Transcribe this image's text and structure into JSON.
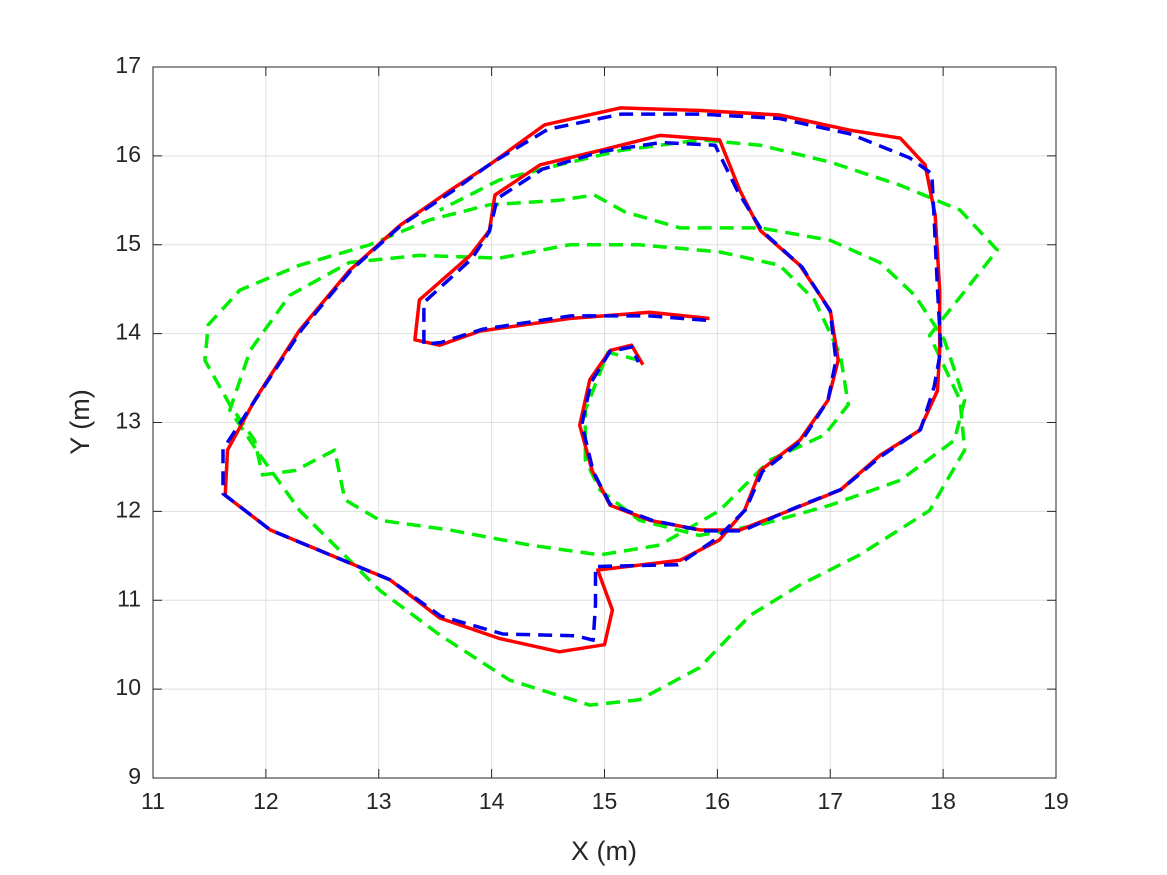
{
  "chart_data": {
    "type": "line",
    "xlabel": "X (m)",
    "ylabel": "Y (m)",
    "xlim": [
      11,
      19
    ],
    "ylim": [
      9,
      17
    ],
    "xticks": [
      11,
      12,
      13,
      14,
      15,
      16,
      17,
      18,
      19
    ],
    "yticks": [
      9,
      10,
      11,
      12,
      13,
      14,
      15,
      16,
      17
    ],
    "grid": true,
    "box": true,
    "series": [
      {
        "color": "#00ee00",
        "dash": "dashed",
        "x": [
          15.31,
          15.03,
          14.83,
          14.83,
          14.96,
          15.31,
          15.84,
          16.38,
          17.0,
          17.62,
          18.1,
          18.19,
          18.01,
          17.75,
          17.44,
          17.0,
          16.38,
          15.67,
          15.18,
          14.91,
          14.6,
          13.98,
          13.45,
          12.92,
          12.3,
          11.77,
          11.49,
          11.46,
          11.68,
          11.9,
          11.97,
          12.26,
          12.61,
          12.7,
          13.01,
          13.63,
          14.34,
          14.96,
          15.49,
          16.02,
          16.47,
          16.95,
          17.16,
          17.09,
          16.86,
          16.55,
          16.02,
          15.31,
          14.69,
          14.07,
          13.36,
          12.74,
          12.21,
          11.86,
          11.68,
          11.95,
          12.3,
          13.01,
          13.54,
          14.16,
          14.87,
          15.31,
          15.84,
          16.29,
          16.73,
          17.26,
          17.88,
          18.19,
          18.15,
          17.88,
          18.48,
          18.15,
          17.62,
          17.0,
          16.38,
          15.85,
          15.14,
          14.6,
          14.07,
          13.54
        ],
        "values": [
          13.7,
          13.79,
          13.14,
          12.58,
          12.24,
          11.9,
          11.73,
          11.85,
          12.07,
          12.35,
          12.8,
          13.25,
          13.93,
          14.43,
          14.8,
          15.05,
          15.19,
          15.19,
          15.37,
          15.56,
          15.5,
          15.45,
          15.28,
          15.0,
          14.77,
          14.49,
          14.1,
          13.7,
          13.2,
          12.8,
          12.41,
          12.46,
          12.69,
          12.13,
          11.9,
          11.79,
          11.62,
          11.51,
          11.62,
          12.01,
          12.58,
          12.86,
          13.2,
          13.76,
          14.38,
          14.77,
          14.92,
          15.0,
          15.0,
          14.85,
          14.88,
          14.8,
          14.43,
          13.81,
          13.14,
          12.63,
          12.01,
          11.11,
          10.61,
          10.1,
          9.82,
          9.88,
          10.24,
          10.83,
          11.17,
          11.51,
          12.01,
          12.69,
          13.25,
          13.98,
          14.94,
          15.39,
          15.67,
          15.93,
          16.12,
          16.18,
          16.06,
          15.9,
          15.73,
          15.39
        ]
      },
      {
        "color": "#ff0000",
        "dash": "solid",
        "x": [
          15.93,
          15.4,
          14.69,
          13.9,
          13.54,
          13.32,
          13.36,
          13.81,
          13.98,
          14.03,
          14.43,
          14.96,
          15.49,
          16.02,
          16.2,
          16.38,
          16.73,
          17.0,
          17.07,
          16.98,
          16.73,
          16.38,
          16.24,
          16.02,
          15.67,
          14.94,
          15.07,
          15.0,
          14.6,
          14.07,
          13.54,
          13.1,
          12.57,
          12.04,
          11.64,
          11.66,
          11.9,
          12.3,
          12.74,
          13.19,
          13.63,
          13.98,
          14.47,
          15.14,
          15.85,
          16.55,
          17.17,
          17.62,
          17.84,
          17.93,
          17.97,
          17.97,
          17.95,
          17.79,
          17.44,
          17.09,
          16.64,
          16.2,
          15.85,
          15.4,
          15.05,
          14.89,
          14.78,
          14.87,
          15.05,
          15.24,
          15.34
        ],
        "values": [
          14.17,
          14.24,
          14.17,
          14.03,
          13.87,
          13.93,
          14.38,
          14.88,
          15.16,
          15.56,
          15.9,
          16.06,
          16.23,
          16.18,
          15.61,
          15.16,
          14.77,
          14.26,
          13.7,
          13.25,
          12.8,
          12.46,
          12.01,
          11.68,
          11.45,
          11.34,
          10.89,
          10.5,
          10.42,
          10.57,
          10.8,
          11.23,
          11.51,
          11.79,
          12.18,
          12.69,
          13.25,
          14.04,
          14.71,
          15.22,
          15.61,
          15.9,
          16.35,
          16.54,
          16.51,
          16.46,
          16.29,
          16.2,
          15.9,
          15.33,
          14.49,
          13.81,
          13.36,
          12.91,
          12.63,
          12.24,
          12.01,
          11.79,
          11.79,
          11.9,
          12.07,
          12.46,
          12.97,
          13.48,
          13.81,
          13.87,
          13.65
        ]
      },
      {
        "color": "#0000ee",
        "dash": "dashed",
        "x": [
          15.9,
          15.4,
          14.7,
          13.92,
          13.55,
          13.4,
          13.4,
          13.83,
          13.98,
          14.05,
          14.45,
          14.98,
          15.5,
          15.98,
          16.18,
          16.4,
          16.75,
          17.0,
          17.05,
          16.98,
          16.75,
          16.4,
          16.25,
          16.0,
          15.65,
          14.92,
          14.92,
          14.9,
          14.75,
          14.1,
          13.55,
          13.1,
          12.57,
          12.04,
          11.62,
          11.62,
          11.92,
          12.32,
          12.76,
          13.2,
          13.65,
          14.0,
          14.5,
          15.15,
          15.85,
          16.55,
          17.17,
          17.7,
          17.9,
          17.92,
          17.95,
          17.98,
          17.92,
          17.8,
          17.45,
          17.1,
          16.65,
          16.22,
          15.88,
          15.42,
          15.05,
          14.9,
          14.8,
          14.88,
          15.05,
          15.24,
          15.3
        ],
        "values": [
          14.15,
          14.2,
          14.2,
          14.05,
          13.9,
          13.88,
          14.35,
          14.85,
          15.15,
          15.52,
          15.85,
          16.05,
          16.15,
          16.12,
          15.6,
          15.15,
          14.75,
          14.25,
          13.7,
          13.25,
          12.8,
          12.45,
          12.02,
          11.7,
          11.4,
          11.38,
          10.95,
          10.55,
          10.6,
          10.62,
          10.82,
          11.23,
          11.51,
          11.79,
          12.2,
          12.7,
          13.28,
          14.05,
          14.72,
          15.22,
          15.6,
          15.92,
          16.3,
          16.47,
          16.47,
          16.42,
          16.25,
          15.98,
          15.8,
          15.3,
          14.5,
          13.82,
          13.4,
          12.92,
          12.62,
          12.25,
          12.02,
          11.78,
          11.78,
          11.9,
          12.08,
          12.45,
          12.98,
          13.45,
          13.8,
          13.85,
          13.68
        ]
      }
    ]
  }
}
